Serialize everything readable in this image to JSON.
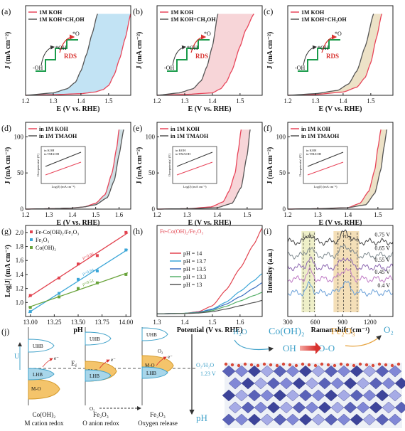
{
  "panels": {
    "a": {
      "letter": "(a)",
      "xlabel": "E (V vs. RHE)",
      "ylabel": "J (mA cm⁻²)",
      "xticks": [
        "1.2",
        "1.3",
        "1.4",
        "1.5"
      ],
      "yticks": [],
      "legend": [
        "1M KOH",
        "1M KOH+CH₃OH"
      ],
      "inset": {
        "labels": [
          "*O",
          "*OH",
          "-OH",
          "RDS"
        ]
      },
      "fill_color": "#bfe2f3"
    },
    "b": {
      "letter": "(b)",
      "xlabel": "E (V vs. RHE)",
      "ylabel": "J (mA cm⁻²)",
      "xticks": [
        "1.2",
        "1.3",
        "1.4",
        "1.5"
      ],
      "yticks": [],
      "legend": [
        "1M KOH",
        "1M KOH+CH₃OH"
      ],
      "inset": {
        "labels": [
          "*O",
          "*OH",
          "-OH",
          "RDS"
        ]
      },
      "fill_color": "#f7d3d6"
    },
    "c": {
      "letter": "(c)",
      "xlabel": "E (V vs. RHE)",
      "ylabel": "J (mA cm⁻²)",
      "xticks": [
        "1.2",
        "1.3",
        "1.4",
        "1.5"
      ],
      "yticks": [],
      "legend": [
        "1M KOH",
        "1M KOH+CH₃OH"
      ],
      "inset": {
        "labels": [
          "*O",
          "*OH",
          "-OH",
          "RDS"
        ]
      },
      "fill_color": "#ece0c4"
    },
    "d": {
      "letter": "(d)",
      "xlabel": "E (V vs. RHE)",
      "ylabel": "J (mA cm⁻²)",
      "xticks": [
        "1.2",
        "1.3",
        "1.4",
        "1.5",
        "1.6"
      ],
      "yticks": [
        "0",
        "50",
        "100"
      ],
      "legend": [
        "in 1M KOH",
        "in 1M TMAOH"
      ],
      "inset": {
        "ylabel": "Overpotential (V)",
        "xlabel": "Log(J) (mA cm⁻²)",
        "legend": [
          "in KOH",
          "in TMAOH"
        ]
      },
      "fill_color": "#ccdde3"
    },
    "e": {
      "letter": "(e)",
      "xlabel": "E (V vs. RHE)",
      "ylabel": "J (mA cm⁻²)",
      "xticks": [
        "1.2",
        "1.3",
        "1.4",
        "1.5"
      ],
      "yticks": [
        "0",
        "50",
        "100"
      ],
      "legend": [
        "in 1M KOH",
        "in 1M TMAOH"
      ],
      "inset": {
        "ylabel": "Overpotential (V)",
        "xlabel": "Log(J) (mA cm⁻²)",
        "legend": [
          "in KOH",
          "in TMAOH"
        ]
      },
      "fill_color": "#f7d3d6"
    },
    "f": {
      "letter": "(f)",
      "xlabel": "E (V vs. RHE)",
      "ylabel": "J (mA cm⁻²)",
      "xticks": [
        "1.2",
        "1.3",
        "1.4",
        "1.5"
      ],
      "yticks": [
        "0",
        "50",
        "100"
      ],
      "legend": [
        "in 1M KOH",
        "in 1M TMAOH"
      ],
      "inset": {
        "ylabel": "Overpotential (V)",
        "xlabel": "Log(J) (mA cm⁻²)",
        "legend": [
          "in KOH",
          "in TMAOH"
        ]
      },
      "fill_color": "#ece0c4"
    },
    "g": {
      "letter": "(g)",
      "xlabel": "pH",
      "ylabel": "Log|J| (mA cm⁻²)",
      "xticks": [
        "13.00",
        "13.25",
        "13.50",
        "13.75",
        "14.00"
      ],
      "yticks": [
        "1.0",
        "1.2",
        "1.4",
        "1.6",
        "1.8",
        "2.0"
      ],
      "legend": [
        "Fe-Co(OH)₂/Fe₂O₃",
        "Fe₂O₃",
        "Co(OH)₂"
      ]
    },
    "h": {
      "letter": "(h)",
      "xlabel": "Potential (V vs. RHE)",
      "ylabel": "",
      "xticks": [
        "1.3",
        "1.4",
        "1.5",
        "1.6"
      ],
      "yticks": [],
      "title": "Fe-Co(OH)₂/Fe₂O₃",
      "legend": [
        "pH = 14",
        "pH = 13.7",
        "pH = 13.5",
        "pH = 13.3",
        "pH = 13"
      ]
    },
    "i": {
      "letter": "(i)",
      "xlabel": "Raman shift (cm⁻¹)",
      "ylabel": "Intensity (a.u.)",
      "xticks": [
        "300",
        "600",
        "900",
        "1200"
      ],
      "band_labels": [
        "Co-O",
        "*O₂"
      ],
      "curve_labels": [
        "0.75 V",
        "0.65 V",
        "0.55 V",
        "0.45 V",
        "0.4 V"
      ]
    },
    "j": {
      "letter": "(j)",
      "U": "U",
      "Ef": "E",
      "Ef_sub": "f",
      "e_minus": "e⁻",
      "columns": [
        {
          "title": "Co(OH)₂",
          "subtitle": "M cation redox",
          "UHB": "UHB",
          "LHB": "LHB",
          "MO": "M-O"
        },
        {
          "title": "Fe₂O₃",
          "subtitle": "O anion redox",
          "UHB": "UHB",
          "LHB": "LHB",
          "MO": "M-O"
        },
        {
          "title": "Fe₂O₃",
          "subtitle": "Oxygen release",
          "UHB": "UHB",
          "LHB": "LHB",
          "MO": "M-O"
        }
      ],
      "O2": "O₂",
      "redox_label": "O₂/H₂O",
      "redox_value": "1.23 V",
      "pH": "pH",
      "scheme": {
        "H2O": "H₂O",
        "CoOH2": "Co(OH)₂",
        "OH": "OH",
        "O2_left": "O₂",
        "OO": "O-O",
        "Fe2O3": "Fe₂O₃",
        "O2_right": "O₂"
      }
    }
  },
  "chart_data": [
    {
      "panel": "a",
      "type": "line",
      "xlabel": "E (V vs. RHE)",
      "ylabel": "J (mA cm⁻²)",
      "xlim": [
        1.2,
        1.58
      ],
      "series": [
        {
          "name": "1M KOH",
          "color": "#e8455a",
          "x": [
            1.2,
            1.3,
            1.4,
            1.45,
            1.48,
            1.5,
            1.52,
            1.54,
            1.56,
            1.58
          ],
          "y": [
            0,
            0.8,
            2,
            4,
            7,
            12,
            25,
            45,
            70,
            100
          ]
        },
        {
          "name": "1M KOH+CH₃OH",
          "color": "#555555",
          "x": [
            1.2,
            1.3,
            1.35,
            1.38,
            1.4,
            1.42,
            1.44,
            1.46
          ],
          "y": [
            0,
            3,
            8,
            16,
            30,
            50,
            75,
            100
          ]
        }
      ]
    },
    {
      "panel": "b",
      "type": "line",
      "xlabel": "E (V vs. RHE)",
      "ylabel": "J (mA cm⁻²)",
      "xlim": [
        1.2,
        1.58
      ],
      "series": [
        {
          "name": "1M KOH",
          "color": "#e8455a",
          "x": [
            1.2,
            1.3,
            1.4,
            1.43,
            1.45,
            1.47,
            1.5,
            1.52,
            1.55
          ],
          "y": [
            0,
            1,
            3,
            8,
            16,
            30,
            60,
            80,
            100
          ]
        },
        {
          "name": "1M KOH+CH₃OH",
          "color": "#555555",
          "x": [
            1.2,
            1.28,
            1.33,
            1.36,
            1.38,
            1.4,
            1.42
          ],
          "y": [
            0,
            3,
            8,
            18,
            35,
            60,
            100
          ]
        }
      ]
    },
    {
      "panel": "c",
      "type": "line",
      "xlabel": "E (V vs. RHE)",
      "ylabel": "J (mA cm⁻²)",
      "xlim": [
        1.2,
        1.58
      ],
      "series": [
        {
          "name": "1M KOH",
          "color": "#e8455a",
          "x": [
            1.2,
            1.3,
            1.4,
            1.45,
            1.48,
            1.5,
            1.52,
            1.54
          ],
          "y": [
            0,
            1,
            4,
            10,
            22,
            40,
            70,
            100
          ]
        },
        {
          "name": "1M KOH+CH₃OH",
          "color": "#555555",
          "x": [
            1.2,
            1.3,
            1.38,
            1.42,
            1.45,
            1.48,
            1.51
          ],
          "y": [
            0,
            2,
            6,
            14,
            30,
            60,
            100
          ]
        }
      ]
    },
    {
      "panel": "d",
      "type": "line",
      "xlabel": "E (V vs. RHE)",
      "ylabel": "J (mA cm⁻²)",
      "xlim": [
        1.2,
        1.65
      ],
      "ylim": [
        0,
        120
      ],
      "series": [
        {
          "name": "in 1M KOH",
          "color": "#e8455a",
          "x": [
            1.2,
            1.3,
            1.4,
            1.45,
            1.5,
            1.54,
            1.57,
            1.59,
            1.6
          ],
          "y": [
            0,
            0.5,
            1.5,
            3,
            8,
            20,
            50,
            85,
            110
          ]
        },
        {
          "name": "in 1M TMAOH",
          "color": "#555555",
          "x": [
            1.2,
            1.3,
            1.4,
            1.45,
            1.5,
            1.55,
            1.58,
            1.6,
            1.62
          ],
          "y": [
            0,
            0.5,
            1.5,
            3,
            6,
            16,
            40,
            75,
            110
          ]
        }
      ]
    },
    {
      "panel": "e",
      "type": "line",
      "xlabel": "E (V vs. RHE)",
      "ylabel": "J (mA cm⁻²)",
      "xlim": [
        1.2,
        1.55
      ],
      "ylim": [
        0,
        120
      ],
      "series": [
        {
          "name": "in 1M KOH",
          "color": "#e8455a",
          "x": [
            1.2,
            1.3,
            1.38,
            1.42,
            1.44,
            1.46,
            1.47,
            1.48
          ],
          "y": [
            0,
            0.5,
            3,
            10,
            25,
            50,
            80,
            110
          ]
        },
        {
          "name": "in 1M TMAOH",
          "color": "#555555",
          "x": [
            1.2,
            1.3,
            1.4,
            1.45,
            1.48,
            1.5,
            1.51
          ],
          "y": [
            0,
            0.5,
            2,
            8,
            30,
            75,
            110
          ]
        }
      ]
    },
    {
      "panel": "f",
      "type": "line",
      "xlabel": "E (V vs. RHE)",
      "ylabel": "J (mA cm⁻²)",
      "xlim": [
        1.2,
        1.55
      ],
      "ylim": [
        0,
        120
      ],
      "series": [
        {
          "name": "in 1M KOH",
          "color": "#e8455a",
          "x": [
            1.2,
            1.3,
            1.4,
            1.44,
            1.47,
            1.49,
            1.5,
            1.51
          ],
          "y": [
            0,
            0.5,
            2,
            8,
            25,
            55,
            85,
            110
          ]
        },
        {
          "name": "in 1M TMAOH",
          "color": "#555555",
          "x": [
            1.2,
            1.3,
            1.4,
            1.46,
            1.49,
            1.51,
            1.52,
            1.53
          ],
          "y": [
            0,
            0.5,
            2,
            6,
            22,
            55,
            85,
            110
          ]
        }
      ]
    },
    {
      "panel": "g",
      "type": "scatter",
      "xlabel": "pH",
      "ylabel": "Log|J| (mA cm⁻²)",
      "xlim": [
        12.95,
        14.05
      ],
      "ylim": [
        0.8,
        2.1
      ],
      "series": [
        {
          "name": "Fe-Co(OH)₂/Fe₂O₃",
          "color": "#e2434f",
          "x": [
            13.0,
            13.3,
            13.5,
            13.7,
            14.0
          ],
          "y": [
            1.1,
            1.35,
            1.55,
            1.67,
            2.0
          ],
          "slope_label": "ρ=0.86"
        },
        {
          "name": "Fe₂O₃",
          "color": "#3ba6d8",
          "x": [
            13.0,
            13.3,
            13.5,
            13.7,
            14.0
          ],
          "y": [
            0.87,
            1.13,
            1.33,
            1.45,
            1.75
          ],
          "slope_label": "ρ=0.84"
        },
        {
          "name": "Co(OH)₂",
          "color": "#69a33b",
          "x": [
            13.0,
            13.3,
            13.5,
            13.7,
            14.0
          ],
          "y": [
            0.93,
            1.08,
            1.2,
            1.28,
            1.4
          ],
          "slope_label": "ρ=0.51"
        }
      ]
    },
    {
      "panel": "h",
      "type": "line",
      "xlabel": "Potential (V vs. RHE)",
      "xlim": [
        1.3,
        1.68
      ],
      "series": [
        {
          "name": "pH = 14",
          "color": "#e2434f",
          "x": [
            1.3,
            1.4,
            1.45,
            1.5,
            1.55,
            1.6,
            1.65,
            1.68
          ],
          "y": [
            0,
            1,
            4,
            15,
            45,
            85,
            130,
            160
          ]
        },
        {
          "name": "pH = 13.7",
          "color": "#3ba6d8",
          "x": [
            1.3,
            1.4,
            1.45,
            1.5,
            1.55,
            1.6,
            1.65,
            1.68
          ],
          "y": [
            0,
            1,
            3,
            9,
            22,
            42,
            62,
            75
          ]
        },
        {
          "name": "pH = 13.5",
          "color": "#3c6fc0",
          "x": [
            1.3,
            1.4,
            1.45,
            1.5,
            1.55,
            1.6,
            1.65,
            1.68
          ],
          "y": [
            0,
            1,
            3,
            8,
            18,
            32,
            48,
            58
          ]
        },
        {
          "name": "pH = 13.3",
          "color": "#57b06a",
          "x": [
            1.3,
            1.4,
            1.45,
            1.5,
            1.55,
            1.6,
            1.65,
            1.68
          ],
          "y": [
            0,
            1,
            2,
            6,
            14,
            24,
            34,
            40
          ]
        },
        {
          "name": "pH = 13",
          "color": "#555555",
          "x": [
            1.3,
            1.4,
            1.45,
            1.5,
            1.55,
            1.6,
            1.65,
            1.68
          ],
          "y": [
            0,
            0.5,
            1.5,
            4,
            9,
            15,
            21,
            25
          ]
        }
      ]
    },
    {
      "panel": "i",
      "type": "line",
      "xlabel": "Raman shift (cm⁻¹)",
      "ylabel": "Intensity (a.u.)",
      "xlim": [
        300,
        1450
      ],
      "series": [
        {
          "name": "0.75 V",
          "color": "#444444"
        },
        {
          "name": "0.65 V",
          "color": "#7f8a8f"
        },
        {
          "name": "0.55 V",
          "color": "#8b66b0"
        },
        {
          "name": "0.45 V",
          "color": "#c07cc6"
        },
        {
          "name": "0.4 V",
          "color": "#6aa0d8"
        }
      ]
    }
  ]
}
